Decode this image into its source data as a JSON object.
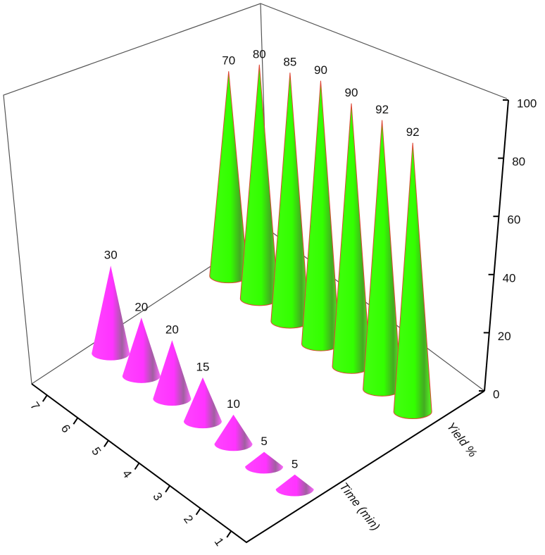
{
  "chart_data": {
    "type": "cone3d",
    "x_label": "Time (min)",
    "y_label": "Yield %",
    "categories": [
      "1",
      "2",
      "3",
      "4",
      "5",
      "6",
      "7"
    ],
    "series": [
      {
        "color": "#ff33ff",
        "values": [
          5,
          5,
          10,
          15,
          20,
          20,
          30
        ]
      },
      {
        "color": "#33ff00",
        "values": [
          92,
          92,
          90,
          90,
          85,
          80,
          70
        ]
      }
    ],
    "zlim": [
      0,
      100
    ],
    "zticks": [
      0,
      20,
      40,
      60,
      80,
      100
    ]
  }
}
